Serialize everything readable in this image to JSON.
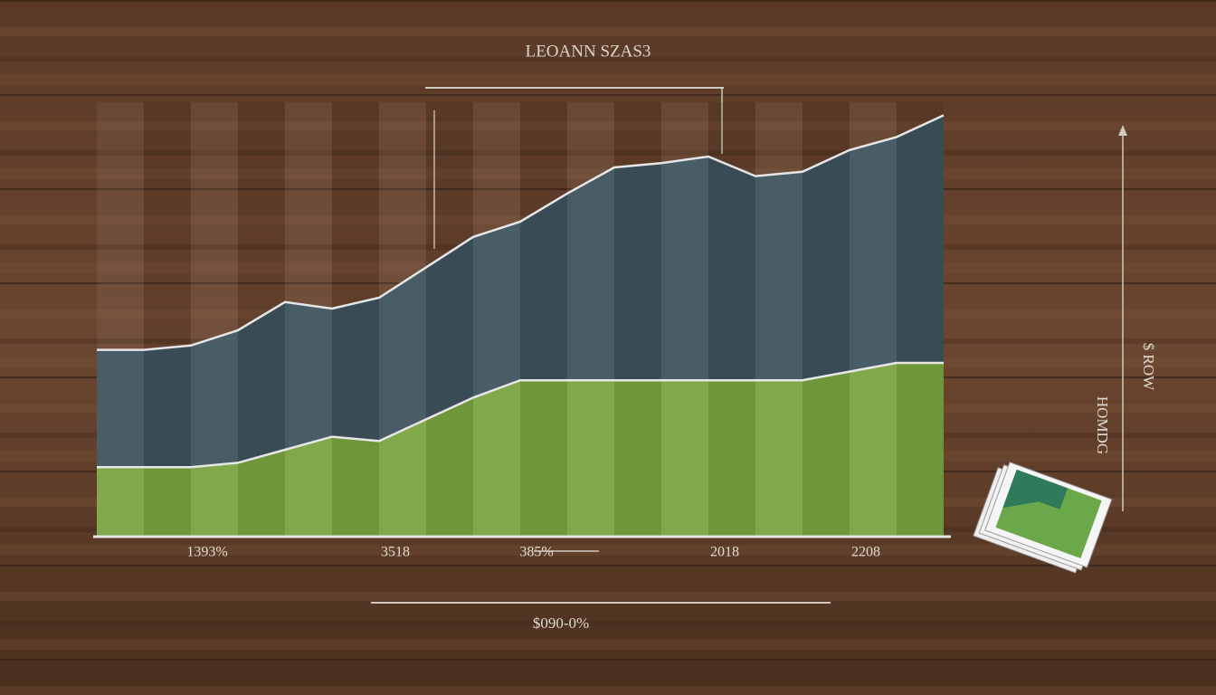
{
  "chart_data": {
    "type": "stacked_area",
    "title": "LEOANN SZAS3",
    "categories": [
      null,
      null,
      "1393%",
      null,
      null,
      null,
      "3518",
      null,
      null,
      "385%",
      null,
      null,
      null,
      "2018",
      null,
      null,
      "2208",
      null,
      null
    ],
    "series": [
      {
        "color": "#7aa33f",
        "values": [
          16,
          16,
          16,
          17,
          20,
          23,
          22,
          27,
          32,
          36,
          36,
          36,
          36,
          36,
          36,
          36,
          38,
          40,
          40
        ]
      },
      {
        "color": "#3e535d",
        "values": [
          27,
          27,
          28,
          30.5,
          34,
          29.5,
          33,
          35,
          37,
          36.5,
          43,
          49,
          50,
          51.5,
          47,
          48,
          51,
          52,
          57
        ]
      }
    ],
    "ylim": [
      0,
      100
    ],
    "x_axis_label": "$090-0%",
    "y_axis_labels": [
      "$ ROW",
      "HOMDG"
    ]
  }
}
